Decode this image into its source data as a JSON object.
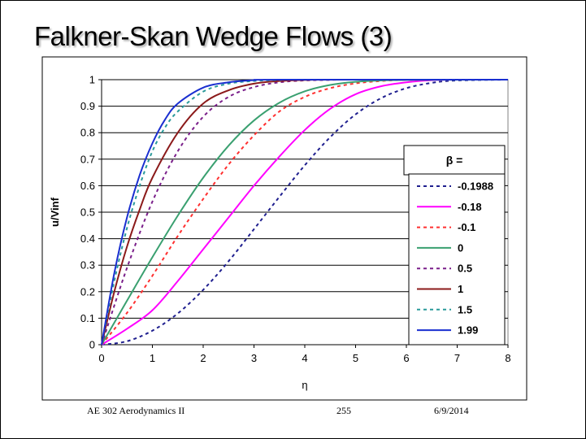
{
  "slide": {
    "title": "Falkner-Skan Wedge Flows (3)",
    "footer_left": "AE 302 Aerodynamics II",
    "footer_center": "255",
    "footer_right": "6/9/2014"
  },
  "chart_data": {
    "type": "line",
    "title": "",
    "xlabel": "η",
    "ylabel": "u/Vinf",
    "xlim": [
      0,
      8
    ],
    "ylim": [
      0,
      1
    ],
    "x_ticks": [
      "0",
      "1",
      "2",
      "3",
      "4",
      "5",
      "6",
      "7",
      "8"
    ],
    "y_ticks": [
      "0",
      "0.1",
      "0.2",
      "0.3",
      "0.4",
      "0.5",
      "0.6",
      "0.7",
      "0.8",
      "0.9",
      "1"
    ],
    "grid": "horizontal",
    "legend": {
      "title": "β =",
      "position": "right"
    },
    "series": [
      {
        "name": "-0.1988",
        "color": "#1f1f8f",
        "dash": "dashed",
        "x": [
          0,
          0.5,
          1,
          1.5,
          2,
          2.5,
          3,
          3.5,
          4,
          4.5,
          5,
          5.5,
          6,
          6.5,
          7,
          8
        ],
        "y": [
          0,
          0.013,
          0.053,
          0.118,
          0.207,
          0.315,
          0.436,
          0.558,
          0.677,
          0.783,
          0.869,
          0.93,
          0.968,
          0.988,
          0.997,
          1.0
        ]
      },
      {
        "name": "-0.18",
        "color": "#ff00ff",
        "dash": "solid",
        "x": [
          0,
          0.5,
          1,
          1.5,
          2,
          2.5,
          3,
          3.5,
          4,
          4.5,
          5,
          5.5,
          6,
          6.5,
          7,
          8
        ],
        "y": [
          0,
          0.06,
          0.13,
          0.24,
          0.36,
          0.48,
          0.6,
          0.71,
          0.81,
          0.89,
          0.945,
          0.975,
          0.99,
          0.998,
          1.0,
          1.0
        ]
      },
      {
        "name": "-0.1",
        "color": "#ff3030",
        "dash": "dashed",
        "x": [
          0,
          0.5,
          1,
          1.5,
          2,
          2.5,
          3,
          3.5,
          4,
          4.5,
          5,
          5.5,
          6,
          7,
          8
        ],
        "y": [
          0,
          0.12,
          0.26,
          0.41,
          0.55,
          0.68,
          0.79,
          0.88,
          0.935,
          0.968,
          0.986,
          0.995,
          0.999,
          1.0,
          1.0
        ]
      },
      {
        "name": "0",
        "color": "#3aa070",
        "dash": "solid",
        "x": [
          0,
          0.5,
          1,
          1.5,
          2,
          2.5,
          3,
          3.5,
          4,
          4.5,
          5,
          5.5,
          6,
          8
        ],
        "y": [
          0,
          0.166,
          0.33,
          0.487,
          0.63,
          0.751,
          0.846,
          0.913,
          0.956,
          0.98,
          0.992,
          0.997,
          0.999,
          1.0
        ]
      },
      {
        "name": "0.5",
        "color": "#7a1f8a",
        "dash": "dashed",
        "x": [
          0,
          0.5,
          1,
          1.5,
          2,
          2.5,
          3,
          3.5,
          4,
          4.5,
          5,
          8
        ],
        "y": [
          0,
          0.29,
          0.54,
          0.73,
          0.86,
          0.935,
          0.972,
          0.99,
          0.997,
          0.999,
          1.0,
          1.0
        ]
      },
      {
        "name": "1",
        "color": "#8b1a1a",
        "dash": "solid",
        "x": [
          0,
          0.25,
          0.5,
          0.75,
          1,
          1.5,
          2,
          2.5,
          3,
          3.5,
          4,
          5,
          8
        ],
        "y": [
          0,
          0.2,
          0.37,
          0.51,
          0.63,
          0.8,
          0.91,
          0.96,
          0.985,
          0.995,
          0.999,
          1.0,
          1.0
        ]
      },
      {
        "name": "1.5",
        "color": "#2a9a9a",
        "dash": "dashed",
        "x": [
          0,
          0.25,
          0.5,
          0.75,
          1,
          1.25,
          1.5,
          2,
          2.5,
          3,
          3.5,
          4,
          8
        ],
        "y": [
          0,
          0.24,
          0.44,
          0.6,
          0.73,
          0.82,
          0.88,
          0.955,
          0.985,
          0.995,
          0.999,
          1.0,
          1.0
        ]
      },
      {
        "name": "1.99",
        "color": "#1a2fd0",
        "dash": "solid",
        "x": [
          0,
          0.25,
          0.5,
          0.75,
          1,
          1.25,
          1.5,
          2,
          2.5,
          3,
          3.5,
          8
        ],
        "y": [
          0,
          0.27,
          0.48,
          0.64,
          0.76,
          0.85,
          0.91,
          0.97,
          0.99,
          0.998,
          1.0,
          1.0
        ]
      }
    ]
  }
}
